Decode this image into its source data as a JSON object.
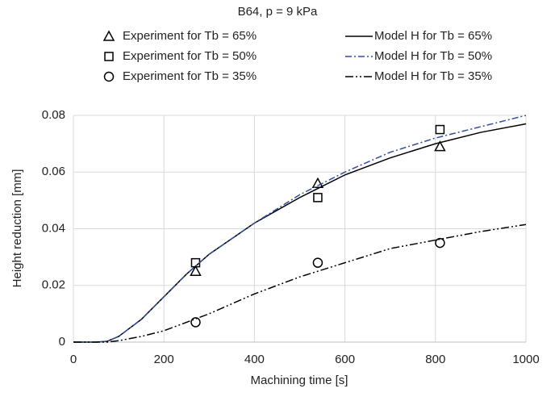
{
  "chart_data": {
    "type": "line",
    "title": "B64, p = 9 kPa",
    "xlabel": "Machining time [s]",
    "ylabel": "Height reduction [mm]",
    "xlim": [
      0,
      1000
    ],
    "xticks": [
      0,
      200,
      400,
      600,
      800,
      1000
    ],
    "ylim": [
      0,
      0.08
    ],
    "yticks": [
      0,
      0.02,
      0.04,
      0.06,
      0.08
    ],
    "grid": true,
    "series": [
      {
        "name": "Experiment for Tb = 65%",
        "type": "scatter",
        "marker": "triangle",
        "color": "#000000",
        "x": [
          270,
          540,
          810
        ],
        "values": [
          0.025,
          0.056,
          0.069
        ]
      },
      {
        "name": "Model H for Tb = 65%",
        "type": "line",
        "dash": "none",
        "color": "#000000",
        "x": [
          0,
          50,
          75,
          100,
          125,
          150,
          200,
          250,
          300,
          400,
          500,
          600,
          700,
          800,
          900,
          1000
        ],
        "values": [
          0,
          0,
          0.0003,
          0.002,
          0.005,
          0.008,
          0.016,
          0.024,
          0.031,
          0.042,
          0.051,
          0.059,
          0.065,
          0.07,
          0.074,
          0.077
        ]
      },
      {
        "name": "Experiment for Tb = 50%",
        "type": "scatter",
        "marker": "square",
        "color": "#000000",
        "x": [
          270,
          540,
          810
        ],
        "values": [
          0.028,
          0.051,
          0.075
        ]
      },
      {
        "name": "Model H for Tb = 50%",
        "type": "line",
        "dash": "8 3 2 3",
        "color": "#2f4f9f",
        "x": [
          0,
          50,
          75,
          100,
          125,
          150,
          200,
          250,
          300,
          400,
          500,
          600,
          700,
          800,
          900,
          1000
        ],
        "values": [
          0,
          0,
          0.0003,
          0.002,
          0.005,
          0.008,
          0.016,
          0.024,
          0.031,
          0.042,
          0.052,
          0.06,
          0.067,
          0.072,
          0.076,
          0.08
        ]
      },
      {
        "name": "Experiment for Tb = 35%",
        "type": "scatter",
        "marker": "circle",
        "color": "#000000",
        "x": [
          270,
          540,
          810
        ],
        "values": [
          0.007,
          0.028,
          0.035
        ]
      },
      {
        "name": "Model H for Tb = 35%",
        "type": "line",
        "dash": "10 3 2 3 2 3",
        "color": "#000000",
        "x": [
          0,
          75,
          100,
          150,
          200,
          250,
          300,
          400,
          500,
          600,
          700,
          800,
          900,
          1000
        ],
        "values": [
          0,
          0,
          0.0005,
          0.002,
          0.004,
          0.007,
          0.01,
          0.017,
          0.023,
          0.028,
          0.033,
          0.036,
          0.039,
          0.0415
        ]
      }
    ]
  }
}
